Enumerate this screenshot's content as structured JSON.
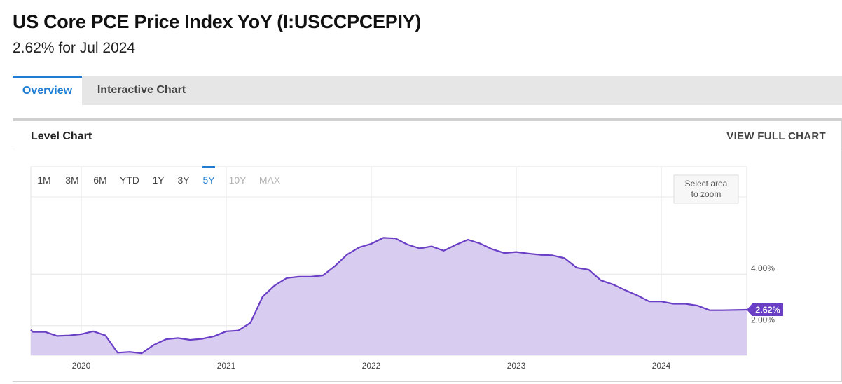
{
  "header": {
    "title": "US Core PCE Price Index YoY (I:USCCPCEPIY)",
    "subtitle": "2.62% for Jul 2024"
  },
  "tabs": [
    {
      "label": "Overview",
      "active": true
    },
    {
      "label": "Interactive Chart",
      "active": false
    }
  ],
  "card": {
    "title": "Level Chart",
    "view_full_label": "VIEW FULL CHART"
  },
  "range_buttons": [
    {
      "label": "1M",
      "state": "enabled"
    },
    {
      "label": "3M",
      "state": "enabled"
    },
    {
      "label": "6M",
      "state": "enabled"
    },
    {
      "label": "YTD",
      "state": "enabled"
    },
    {
      "label": "1Y",
      "state": "enabled"
    },
    {
      "label": "3Y",
      "state": "enabled"
    },
    {
      "label": "5Y",
      "state": "active"
    },
    {
      "label": "10Y",
      "state": "disabled"
    },
    {
      "label": "MAX",
      "state": "disabled"
    }
  ],
  "zoom_hint": [
    "Select area",
    "to zoom"
  ],
  "colors": {
    "accent": "#1f7ed3",
    "line": "#6a3fc6",
    "fill": "#d8ccf0",
    "badge": "#6a3fc6"
  },
  "chart_data": {
    "type": "area",
    "series": [
      {
        "x": [
          "2019-08",
          "2019-09",
          "2019-10",
          "2019-11",
          "2019-12",
          "2020-01",
          "2020-02",
          "2020-03",
          "2020-04",
          "2020-05",
          "2020-06",
          "2020-07",
          "2020-08",
          "2020-09",
          "2020-10",
          "2020-11",
          "2020-12",
          "2021-01",
          "2021-02",
          "2021-03",
          "2021-04",
          "2021-05",
          "2021-06",
          "2021-07",
          "2021-08",
          "2021-09",
          "2021-10",
          "2021-11",
          "2021-12",
          "2022-01",
          "2022-02",
          "2022-03",
          "2022-04",
          "2022-05",
          "2022-06",
          "2022-07",
          "2022-08",
          "2022-09",
          "2022-10",
          "2022-11",
          "2022-12",
          "2023-01",
          "2023-02",
          "2023-03",
          "2023-04",
          "2023-05",
          "2023-06",
          "2023-07",
          "2023-08",
          "2023-09",
          "2023-10",
          "2023-11",
          "2023-12",
          "2024-01",
          "2024-02",
          "2024-03",
          "2024-04",
          "2024-05",
          "2024-06",
          "2024-07"
        ],
        "values": [
          1.84,
          1.76,
          1.76,
          1.6,
          1.62,
          1.67,
          1.78,
          1.62,
          0.95,
          0.98,
          0.93,
          1.25,
          1.47,
          1.52,
          1.45,
          1.49,
          1.59,
          1.78,
          1.81,
          2.11,
          3.12,
          3.56,
          3.85,
          3.9,
          3.9,
          3.95,
          4.32,
          4.76,
          5.04,
          5.18,
          5.41,
          5.39,
          5.15,
          5.0,
          5.08,
          4.91,
          5.14,
          5.34,
          5.19,
          4.97,
          4.82,
          4.86,
          4.8,
          4.75,
          4.73,
          4.62,
          4.25,
          4.17,
          3.76,
          3.6,
          3.38,
          3.18,
          2.94,
          2.94,
          2.85,
          2.85,
          2.78,
          2.6,
          2.6,
          2.62
        ]
      }
    ],
    "x_ticks": [
      "2020",
      "2021",
      "2022",
      "2023",
      "2024"
    ],
    "y_ticks": [
      "4.00%",
      "2.00%"
    ],
    "ylim": [
      0.85,
      7.0
    ],
    "current_value_label": "2.62%",
    "grid": true
  }
}
